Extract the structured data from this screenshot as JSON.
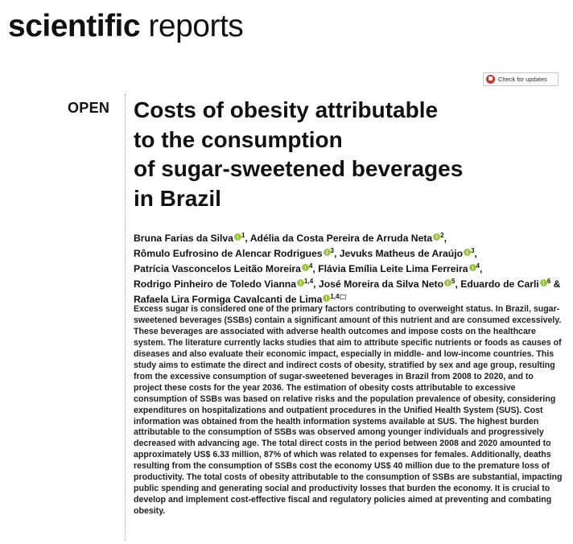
{
  "journal": {
    "name_bold": "scientific",
    "name_light": "reports"
  },
  "check_updates": {
    "label": "Check for updates"
  },
  "open_label": "OPEN",
  "title_lines": [
    "Costs of obesity attributable",
    "to the consumption",
    "of sugar-sweetened beverages",
    "in Brazil"
  ],
  "authors": [
    {
      "name": "Bruna Farias da Silva",
      "aff": "1",
      "sep": ", "
    },
    {
      "name": "Adélia da Costa Pereira de Arruda Neta",
      "aff": "2",
      "sep": ","
    },
    {
      "name": "Rômulo Eufrosino de Alencar Rodrigues",
      "aff": "3",
      "sep": ", "
    },
    {
      "name": "Jevuks Matheus de Araújo",
      "aff": "3",
      "sep": ","
    },
    {
      "name": "Patrícia Vasconcelos Leitão Moreira",
      "aff": "4",
      "sep": ", "
    },
    {
      "name": "Flávia Emília Leite Lima Ferreira",
      "aff": "4",
      "sep": ","
    },
    {
      "name": "Rodrigo Pinheiro de Toledo Vianna",
      "aff": "1,4",
      "sep": ", "
    },
    {
      "name": "José Moreira da Silva Neto",
      "aff": "5",
      "sep": ", "
    },
    {
      "name": "Eduardo de Carli",
      "aff": "6",
      "sep": " &"
    },
    {
      "name": "Rafaela Lira Formiga Cavalcanti de Lima",
      "aff": "1,4",
      "sep": ""
    }
  ],
  "abstract": "Excess sugar is considered one of the primary factors contributing to overweight status. In Brazil, sugar-sweetened beverages (SSBs) contain a significant amount of this nutrient and are consumed excessively. These beverages are associated with adverse health outcomes and impose costs on the healthcare system. The literature currently lacks studies that aim to attribute specific nutrients or foods as causes of diseases and also evaluate their economic impact, especially in middle- and low-income countries. This study aims to estimate the direct and indirect costs of obesity, stratified by sex and age group, resulting from the excessive consumption of sugar-sweetened beverages in Brazil from 2008 to 2020, and to project these costs for the year 2036. The estimation of obesity costs attributable to excessive consumption of SSBs was based on relative risks and the population prevalence of obesity, considering expenditures on hospitalizations and outpatient procedures in the Unified Health System (SUS). Cost information was obtained from the health information systems available at SUS. The highest burden attributable to the consumption of SSBs was observed among younger individuals and progressively decreased with advancing age. The total direct costs in the period between 2008 and 2020 amounted to approximately US$ 6.33 million, 87% of which was related to expenses for females. Additionally, deaths resulting from the consumption of SSBs cost the economy US$ 40 million due to the premature loss of productivity. The total costs of obesity attributable to the consumption of SSBs are substantial, impacting public spending and generating social and productivity losses that burden the economy. It is crucial to develop and implement cost-effective fiscal and regulatory policies aimed at preventing and combating obesity."
}
